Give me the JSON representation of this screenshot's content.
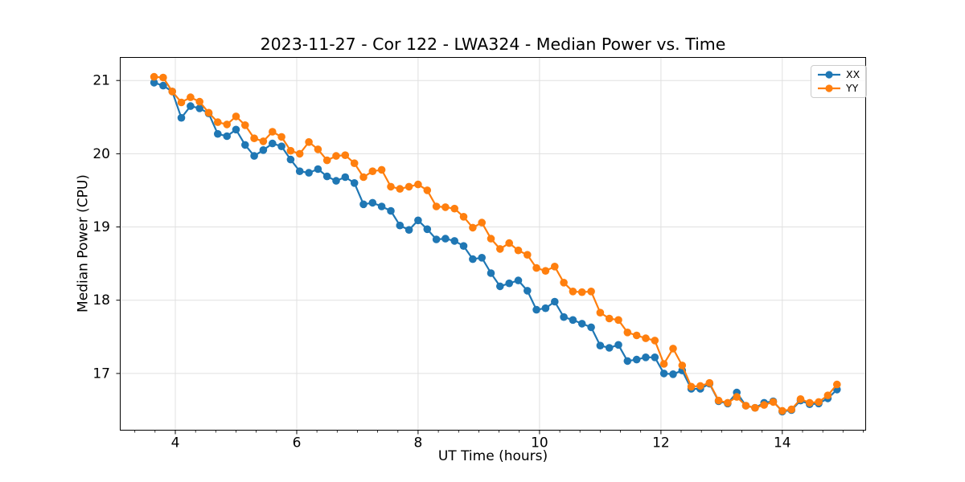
{
  "chart_data": {
    "type": "line",
    "title": "2023-11-27 - Cor 122 - LWA324 - Median Power vs. Time",
    "xlabel": "UT Time (hours)",
    "ylabel": "Median Power (CPU)",
    "xlim": [
      3.086,
      15.38
    ],
    "ylim": [
      16.22,
      21.32
    ],
    "x_major_ticks": [
      4,
      6,
      8,
      10,
      12,
      14
    ],
    "x_tick_labels": [
      "4",
      "6",
      "8",
      "10",
      "12",
      "14"
    ],
    "y_major_ticks": [
      17,
      18,
      19,
      20,
      21
    ],
    "y_tick_labels": [
      "17",
      "18",
      "19",
      "20",
      "21"
    ],
    "x_minor_ticks_per_major": 3,
    "grid": true,
    "legend_position": "upper right",
    "colors": {
      "grid": "#e0e0e0",
      "spine": "#000000",
      "text": "#000000",
      "background": "#ffffff"
    },
    "x": [
      3.65,
      3.8,
      3.95,
      4.1,
      4.25,
      4.4,
      4.55,
      4.7,
      4.85,
      5.0,
      5.15,
      5.3,
      5.45,
      5.6,
      5.75,
      5.9,
      6.05,
      6.2,
      6.35,
      6.5,
      6.65,
      6.8,
      6.95,
      7.1,
      7.25,
      7.4,
      7.55,
      7.7,
      7.85,
      8.0,
      8.15,
      8.3,
      8.45,
      8.6,
      8.75,
      8.9,
      9.05,
      9.2,
      9.35,
      9.5,
      9.65,
      9.8,
      9.95,
      10.1,
      10.25,
      10.4,
      10.55,
      10.7,
      10.85,
      11.0,
      11.15,
      11.3,
      11.45,
      11.6,
      11.75,
      11.9,
      12.05,
      12.2,
      12.35,
      12.5,
      12.65,
      12.8,
      12.95,
      13.1,
      13.25,
      13.4,
      13.55,
      13.7,
      13.85,
      14.0,
      14.15,
      14.3,
      14.45,
      14.6,
      14.75,
      14.9
    ],
    "series": [
      {
        "name": "XX",
        "color": "#1f77b4",
        "values": [
          20.97,
          20.93,
          20.85,
          20.49,
          20.65,
          20.62,
          20.55,
          20.27,
          20.24,
          20.33,
          20.12,
          19.97,
          20.05,
          20.14,
          20.1,
          19.92,
          19.76,
          19.74,
          19.79,
          19.69,
          19.63,
          19.68,
          19.6,
          19.31,
          19.33,
          19.28,
          19.22,
          19.02,
          18.96,
          19.09,
          18.97,
          18.83,
          18.84,
          18.81,
          18.74,
          18.56,
          18.58,
          18.37,
          18.19,
          18.23,
          18.27,
          18.13,
          17.87,
          17.89,
          17.98,
          17.77,
          17.73,
          17.68,
          17.63,
          17.38,
          17.35,
          17.39,
          17.17,
          17.19,
          17.22,
          17.22,
          17.0,
          16.99,
          17.04,
          16.79,
          16.79,
          16.86,
          16.62,
          16.59,
          16.74,
          16.56,
          16.53,
          16.6,
          16.62,
          16.48,
          16.5,
          16.63,
          16.58,
          16.59,
          16.66,
          16.78
        ]
      },
      {
        "name": "YY",
        "color": "#ff7f0e",
        "values": [
          21.05,
          21.04,
          20.85,
          20.7,
          20.77,
          20.71,
          20.56,
          20.43,
          20.4,
          20.51,
          20.39,
          20.21,
          20.17,
          20.3,
          20.23,
          20.04,
          20.0,
          20.16,
          20.06,
          19.91,
          19.97,
          19.98,
          19.87,
          19.68,
          19.76,
          19.78,
          19.55,
          19.52,
          19.55,
          19.58,
          19.5,
          19.28,
          19.27,
          19.25,
          19.14,
          18.99,
          19.06,
          18.84,
          18.7,
          18.78,
          18.68,
          18.62,
          18.44,
          18.4,
          18.46,
          18.24,
          18.12,
          18.11,
          18.12,
          17.83,
          17.75,
          17.73,
          17.56,
          17.52,
          17.48,
          17.45,
          17.13,
          17.34,
          17.11,
          16.82,
          16.83,
          16.87,
          16.63,
          16.6,
          16.68,
          16.56,
          16.53,
          16.57,
          16.61,
          16.49,
          16.51,
          16.65,
          16.6,
          16.61,
          16.7,
          16.85
        ]
      }
    ]
  }
}
